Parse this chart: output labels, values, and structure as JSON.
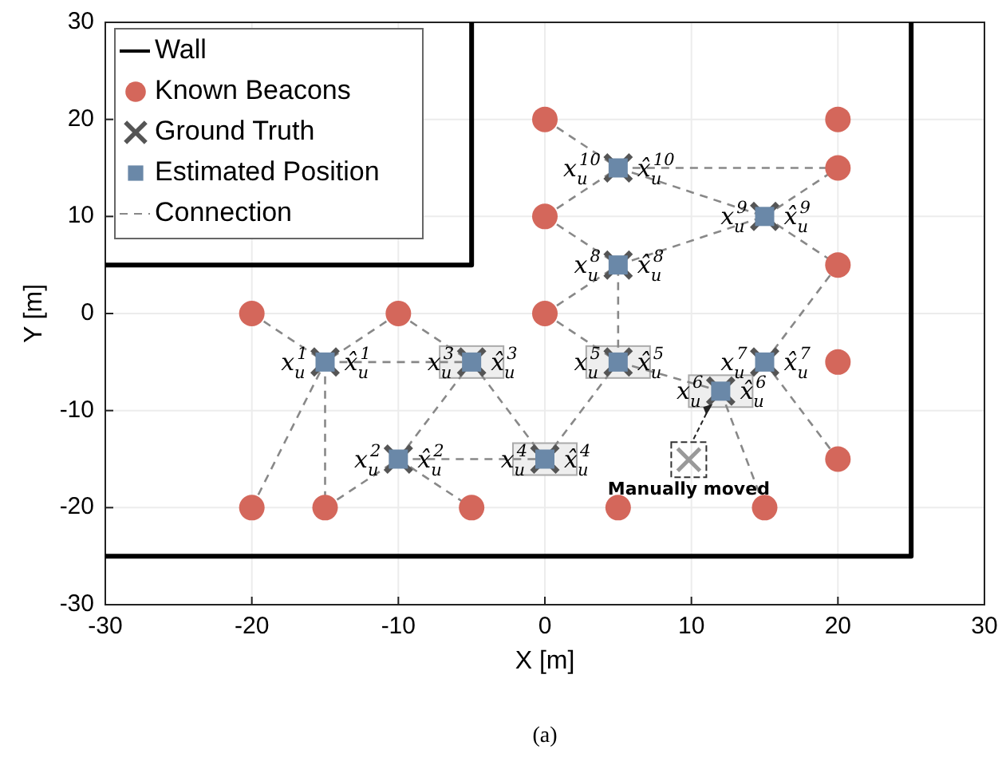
{
  "chart_data": {
    "type": "scatter",
    "xlabel": "X [m]",
    "ylabel": "Y [m]",
    "xlim": [
      -30,
      30
    ],
    "ylim": [
      -30,
      30
    ],
    "xticks": [
      -30,
      -20,
      -10,
      0,
      10,
      20,
      30
    ],
    "yticks": [
      -30,
      -20,
      -10,
      0,
      10,
      20,
      30
    ],
    "grid": true,
    "legend": "top left",
    "series": [
      {
        "name": "Wall",
        "type": "line",
        "color": "#000000",
        "line_style": "solid",
        "x": [
          -30,
          -5,
          -5,
          null,
          -30,
          25,
          25
        ],
        "values": [
          5,
          5,
          30,
          null,
          -25,
          -25,
          30
        ]
      },
      {
        "name": "Known Beacons",
        "color": "#d4675b",
        "marker": "circle",
        "x": [
          -20,
          -10,
          0,
          0,
          0,
          20,
          20,
          20,
          20,
          20,
          -20,
          -15,
          -5,
          5,
          15
        ],
        "values": [
          0,
          0,
          0,
          10,
          20,
          20,
          15,
          5,
          -5,
          -15,
          -20,
          -20,
          -20,
          -20,
          -20
        ]
      },
      {
        "name": "Ground Truth",
        "color": "#555555",
        "marker": "cross",
        "x": [
          -15,
          -10,
          -5,
          0,
          5,
          12,
          15,
          5,
          15,
          5
        ],
        "values": [
          -5,
          -15,
          -5,
          -15,
          -5,
          -8,
          -5,
          5,
          10,
          15
        ]
      },
      {
        "name": "Estimated Position",
        "color": "#6a88a8",
        "marker": "square",
        "x": [
          -15,
          -10,
          -5,
          0,
          5,
          12,
          15,
          5,
          15,
          5
        ],
        "values": [
          -5,
          -15,
          -5,
          -15,
          -5,
          -8,
          -5,
          5,
          10,
          15
        ]
      },
      {
        "name": "Connection",
        "type": "line",
        "color": "#888888",
        "line_style": "dashed",
        "x": [
          -20,
          -15
        ],
        "values": [
          0,
          -5
        ]
      },
      {
        "type": "line",
        "color": "#888888",
        "line_style": "dashed",
        "x": [
          -10,
          -15
        ],
        "values": [
          0,
          -5
        ]
      },
      {
        "type": "line",
        "color": "#888888",
        "line_style": "dashed",
        "x": [
          -15,
          -5
        ],
        "values": [
          -5,
          -5
        ]
      },
      {
        "type": "line",
        "color": "#888888",
        "line_style": "dashed",
        "x": [
          -20,
          -15
        ],
        "values": [
          -20,
          -5
        ]
      },
      {
        "type": "line",
        "color": "#888888",
        "line_style": "dashed",
        "x": [
          -15,
          -15
        ],
        "values": [
          -5,
          -20
        ]
      },
      {
        "type": "line",
        "color": "#888888",
        "line_style": "dashed",
        "x": [
          -10,
          -5
        ],
        "values": [
          0,
          -5
        ]
      },
      {
        "type": "line",
        "color": "#888888",
        "line_style": "dashed",
        "x": [
          -10,
          -5
        ],
        "values": [
          -15,
          -5
        ]
      },
      {
        "type": "line",
        "color": "#888888",
        "line_style": "dashed",
        "x": [
          -5,
          0
        ],
        "values": [
          -5,
          -15
        ]
      },
      {
        "type": "line",
        "color": "#888888",
        "line_style": "dashed",
        "x": [
          -15,
          -10
        ],
        "values": [
          -20,
          -15
        ]
      },
      {
        "type": "line",
        "color": "#888888",
        "line_style": "dashed",
        "x": [
          -10,
          -5
        ],
        "values": [
          -15,
          -20
        ]
      },
      {
        "type": "line",
        "color": "#888888",
        "line_style": "dashed",
        "x": [
          -10,
          0
        ],
        "values": [
          -15,
          -15
        ]
      },
      {
        "type": "line",
        "color": "#888888",
        "line_style": "dashed",
        "x": [
          0,
          5
        ],
        "values": [
          -15,
          -5
        ]
      },
      {
        "type": "line",
        "color": "#888888",
        "line_style": "dashed",
        "x": [
          0,
          5
        ],
        "values": [
          0,
          -5
        ]
      },
      {
        "type": "line",
        "color": "#888888",
        "line_style": "dashed",
        "x": [
          5,
          5
        ],
        "values": [
          -5,
          5
        ]
      },
      {
        "type": "line",
        "color": "#888888",
        "line_style": "dashed",
        "x": [
          5,
          12
        ],
        "values": [
          -5,
          -8
        ]
      },
      {
        "type": "line",
        "color": "#888888",
        "line_style": "dashed",
        "x": [
          0,
          5
        ],
        "values": [
          0,
          5
        ]
      },
      {
        "type": "line",
        "color": "#888888",
        "line_style": "dashed",
        "x": [
          5,
          15
        ],
        "values": [
          5,
          10
        ]
      },
      {
        "type": "line",
        "color": "#888888",
        "line_style": "dashed",
        "x": [
          0,
          5
        ],
        "values": [
          10,
          5
        ]
      },
      {
        "type": "line",
        "color": "#888888",
        "line_style": "dashed",
        "x": [
          0,
          5
        ],
        "values": [
          10,
          15
        ]
      },
      {
        "type": "line",
        "color": "#888888",
        "line_style": "dashed",
        "x": [
          0,
          5
        ],
        "values": [
          20,
          15
        ]
      },
      {
        "type": "line",
        "color": "#888888",
        "line_style": "dashed",
        "x": [
          5,
          20
        ],
        "values": [
          15,
          15
        ]
      },
      {
        "type": "line",
        "color": "#888888",
        "line_style": "dashed",
        "x": [
          5,
          15
        ],
        "values": [
          15,
          10
        ]
      },
      {
        "type": "line",
        "color": "#888888",
        "line_style": "dashed",
        "x": [
          15,
          20
        ],
        "values": [
          10,
          15
        ]
      },
      {
        "type": "line",
        "color": "#888888",
        "line_style": "dashed",
        "x": [
          15,
          20
        ],
        "values": [
          10,
          5
        ]
      },
      {
        "type": "line",
        "color": "#888888",
        "line_style": "dashed",
        "x": [
          15,
          20
        ],
        "values": [
          -5,
          5
        ]
      },
      {
        "type": "line",
        "color": "#888888",
        "line_style": "dashed",
        "x": [
          15,
          20
        ],
        "values": [
          -5,
          -15
        ]
      },
      {
        "type": "line",
        "color": "#888888",
        "line_style": "dashed",
        "x": [
          12,
          15
        ],
        "values": [
          -8,
          -20
        ]
      }
    ],
    "annotations": [
      "x$_{u}$$^{1}$",
      "x̂$_{u}$$^{1}$",
      "x$_{u}$$^{2}$",
      "x̂$_{u}$$^{2}$",
      "x$_{u}$$^{3}$",
      "x̂$_{u}$$^{3}$",
      "x$_{u}$$^{4}$",
      "x̂$_{u}$$^{4}$",
      "x$_{u}$$^{5}$",
      "x̂$_{u}$$^{5}$",
      "x$_{u}$$^{6}$",
      "x̂$_{u}$$^{6}$",
      "x$_{u}$$^{7}$",
      "x̂$_{u}$$^{7}$",
      "x$_{u}$$^{8}$",
      "x̂$_{u}$$^{8}$",
      "x$_{u}$$^{9}$",
      "x̂$_{u}$$^{9}$",
      "x$_{u}$$^{10}$",
      "x̂$_{u}$$^{10}$",
      "Manually moved",
      "(a)"
    ]
  }
}
